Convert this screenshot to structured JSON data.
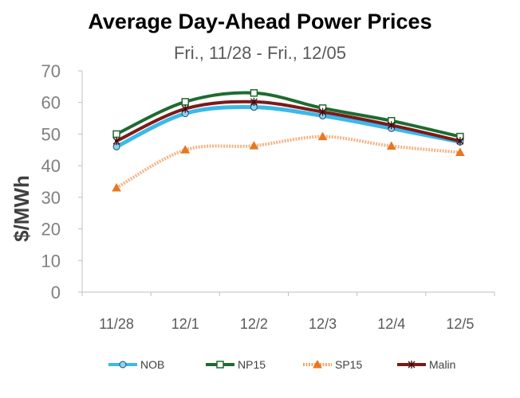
{
  "chart_data": {
    "type": "line",
    "title": "Average Day-Ahead Power Prices",
    "subtitle": "Fri., 11/28 - Fri., 12/05",
    "xlabel": "",
    "ylabel": "$/MWh",
    "ylim": [
      0,
      70
    ],
    "yticks": [
      0,
      10,
      20,
      30,
      40,
      50,
      60,
      70
    ],
    "categories": [
      "11/28",
      "12/1",
      "12/2",
      "12/3",
      "12/4",
      "12/5"
    ],
    "grid": false,
    "legend_position": "bottom",
    "series": [
      {
        "name": "NOB",
        "values": [
          46.0,
          56.5,
          58.5,
          55.8,
          51.8,
          47.5
        ],
        "color": "#3BB9E8",
        "marker": "circle"
      },
      {
        "name": "NP15",
        "values": [
          50.0,
          60.2,
          63.0,
          58.2,
          54.2,
          49.2
        ],
        "color": "#1E6B30",
        "marker": "square"
      },
      {
        "name": "SP15",
        "values": [
          33.0,
          45.0,
          46.3,
          49.2,
          46.2,
          44.2
        ],
        "color": "#F2A36B",
        "marker": "triangle"
      },
      {
        "name": "Malin",
        "values": [
          47.8,
          58.0,
          60.2,
          57.0,
          52.8,
          47.8
        ],
        "color": "#7B1A1A",
        "marker": "star"
      }
    ]
  }
}
